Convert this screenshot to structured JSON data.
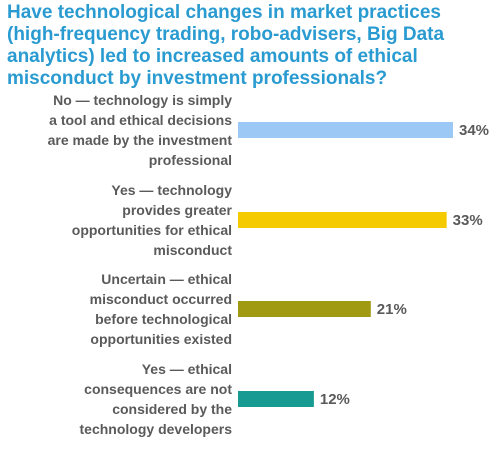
{
  "chart_data": {
    "type": "bar",
    "orientation": "horizontal",
    "title": "Have technological changes in market practices (high-frequency trading, robo-advisers, Big Data analytics) led to increased amounts of ethical misconduct by investment professionals?",
    "categories": [
      "No — technology is simply a tool and ethical decisions are made by the investment professional",
      "Yes — technology provides greater opportunities for ethical misconduct",
      "Uncertain — ethical misconduct occurred before technological opportunities existed",
      "Yes — ethical consequences are not considered by the technology developers"
    ],
    "category_lines": [
      [
        "No —  technology is simply",
        "a tool and ethical decisions",
        "are made by the investment",
        "professional"
      ],
      [
        "Yes —  technology",
        "provides greater",
        "opportunities for ethical",
        "misconduct"
      ],
      [
        "Uncertain —   ethical",
        "misconduct occurred",
        "before technological",
        "opportunities existed"
      ],
      [
        "Yes —  ethical",
        "consequences are not",
        "considered by the",
        "technology developers"
      ]
    ],
    "values": [
      34,
      33,
      21,
      12
    ],
    "value_labels": [
      "34%",
      "33%",
      "21%",
      "12%"
    ],
    "colors": [
      "#9cc8f5",
      "#f5cb00",
      "#a09a12",
      "#169a92"
    ],
    "xlabel": "",
    "ylabel": "",
    "xlim": [
      0,
      34
    ],
    "grid": false,
    "legend": "none"
  }
}
